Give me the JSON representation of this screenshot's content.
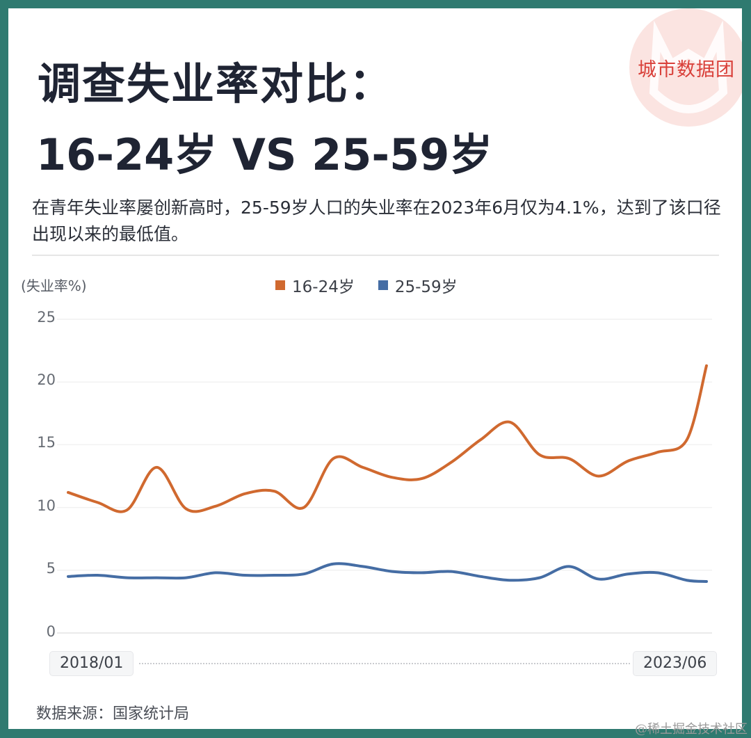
{
  "branding": {
    "logo_text": "城市数据团",
    "logo_bg_color": "#fbe4e1",
    "logo_text_color": "#d9403a"
  },
  "header": {
    "title_line1": "调查失业率对比：",
    "title_line2": "16-24岁 VS 25-59岁",
    "subtitle": "在青年失业率屡创新高时，25-59岁人口的失业率在2023年6月仅为4.1%，达到了该口径出现以来的最低值。"
  },
  "chart": {
    "y_unit_label": "(失业率%)",
    "legend": [
      {
        "label": "16-24岁",
        "color": "#d0692f"
      },
      {
        "label": "25-59岁",
        "color": "#456da4"
      }
    ],
    "y_ticks": [
      "25",
      "20",
      "15",
      "10",
      "5",
      "0"
    ],
    "range_start": "2018/01",
    "range_end": "2023/06"
  },
  "footer": {
    "source": "数据来源：国家统计局",
    "watermark": "@稀土掘金技术社区"
  },
  "colors": {
    "border": "#2f7a70",
    "title": "#1f2433",
    "series_youth": "#d0692f",
    "series_adult": "#456da4"
  },
  "chart_data": {
    "type": "line",
    "title": "调查失业率对比：16-24岁 VS 25-59岁",
    "subtitle": "在青年失业率屡创新高时，25-59岁人口的失业率在2023年6月仅为4.1%，达到了该口径出现以来的最低值。",
    "xlabel": "",
    "ylabel": "(失业率%)",
    "ylim": [
      0,
      25
    ],
    "yticks": [
      0,
      5,
      10,
      15,
      20,
      25
    ],
    "grid": true,
    "legend_position": "top",
    "x_range": [
      "2018/01",
      "2023/06"
    ],
    "x": [
      "2018/01",
      "2018/04",
      "2018/07",
      "2018/10",
      "2019/01",
      "2019/04",
      "2019/07",
      "2019/10",
      "2020/01",
      "2020/04",
      "2020/07",
      "2020/10",
      "2021/01",
      "2021/04",
      "2021/07",
      "2021/10",
      "2022/01",
      "2022/04",
      "2022/07",
      "2022/10",
      "2023/01",
      "2023/04",
      "2023/06"
    ],
    "series": [
      {
        "name": "16-24岁",
        "color": "#d0692f",
        "values": [
          11.2,
          10.4,
          9.8,
          13.2,
          9.9,
          10.1,
          11.1,
          11.3,
          10.0,
          13.9,
          13.2,
          12.4,
          12.3,
          13.6,
          15.4,
          16.8,
          14.2,
          13.9,
          12.5,
          13.7,
          14.4,
          15.4,
          21.3
        ]
      },
      {
        "name": "25-59岁",
        "color": "#456da4",
        "values": [
          4.5,
          4.6,
          4.4,
          4.4,
          4.4,
          4.8,
          4.6,
          4.6,
          4.7,
          5.5,
          5.3,
          4.9,
          4.8,
          4.9,
          4.5,
          4.2,
          4.4,
          5.3,
          4.3,
          4.7,
          4.8,
          4.2,
          4.1
        ]
      }
    ],
    "source": "数据来源：国家统计局"
  }
}
